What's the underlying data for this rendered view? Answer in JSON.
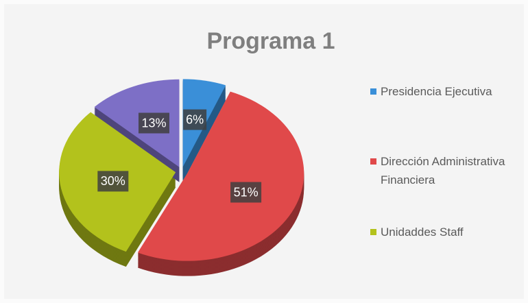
{
  "chart_data": {
    "type": "pie",
    "title": "Programa 1",
    "categories": [
      "Presidencia Ejecutiva",
      "Dirección Administrativa Financiera",
      "Unidaddes Staff",
      null
    ],
    "values": [
      6,
      51,
      30,
      13
    ],
    "value_labels": [
      "6%",
      "51%",
      "30%",
      "13%"
    ],
    "colors": [
      "#3a8fd8",
      "#e0494a",
      "#b3c21c",
      "#7d6fc6"
    ]
  }
}
